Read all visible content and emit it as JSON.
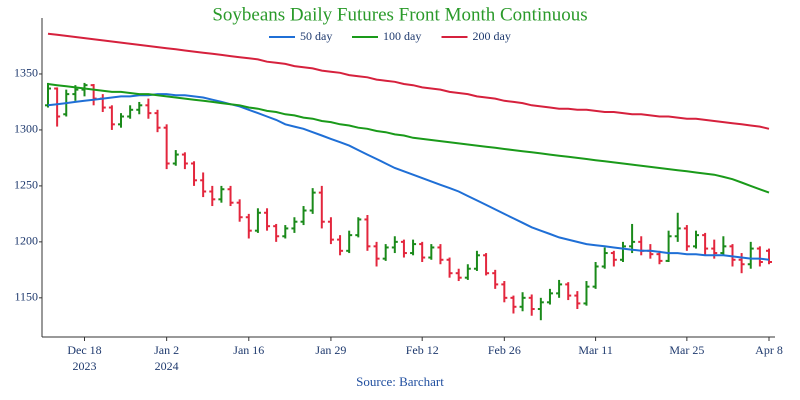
{
  "chart_data": {
    "type": "ohlc",
    "title": "Soybeans Daily Futures Front Month Continuous",
    "source": "Source: Barchart",
    "x": [
      "2023-12-12",
      "2023-12-13",
      "2023-12-14",
      "2023-12-15",
      "2023-12-18",
      "2023-12-19",
      "2023-12-20",
      "2023-12-21",
      "2023-12-22",
      "2023-12-26",
      "2023-12-27",
      "2023-12-28",
      "2023-12-29",
      "2024-01-02",
      "2024-01-03",
      "2024-01-04",
      "2024-01-05",
      "2024-01-08",
      "2024-01-09",
      "2024-01-10",
      "2024-01-11",
      "2024-01-12",
      "2024-01-16",
      "2024-01-17",
      "2024-01-18",
      "2024-01-19",
      "2024-01-22",
      "2024-01-23",
      "2024-01-24",
      "2024-01-25",
      "2024-01-26",
      "2024-01-29",
      "2024-01-30",
      "2024-01-31",
      "2024-02-01",
      "2024-02-02",
      "2024-02-05",
      "2024-02-06",
      "2024-02-07",
      "2024-02-08",
      "2024-02-09",
      "2024-02-12",
      "2024-02-13",
      "2024-02-14",
      "2024-02-15",
      "2024-02-16",
      "2024-02-20",
      "2024-02-21",
      "2024-02-22",
      "2024-02-23",
      "2024-02-26",
      "2024-02-27",
      "2024-02-28",
      "2024-02-29",
      "2024-03-01",
      "2024-03-04",
      "2024-03-05",
      "2024-03-06",
      "2024-03-07",
      "2024-03-08",
      "2024-03-11",
      "2024-03-12",
      "2024-03-13",
      "2024-03-14",
      "2024-03-15",
      "2024-03-18",
      "2024-03-19",
      "2024-03-20",
      "2024-03-21",
      "2024-03-22",
      "2024-03-25",
      "2024-03-26",
      "2024-03-27",
      "2024-03-28",
      "2024-04-01",
      "2024-04-02",
      "2024-04-03",
      "2024-04-04",
      "2024-04-05",
      "2024-04-08"
    ],
    "open": [
      1322,
      1337,
      1314,
      1332,
      1336,
      1340,
      1328,
      1320,
      1305,
      1312,
      1318,
      1322,
      1315,
      1302,
      1270,
      1278,
      1270,
      1255,
      1245,
      1238,
      1247,
      1235,
      1222,
      1210,
      1226,
      1214,
      1205,
      1212,
      1218,
      1228,
      1244,
      1218,
      1202,
      1192,
      1206,
      1220,
      1196,
      1185,
      1195,
      1200,
      1190,
      1198,
      1186,
      1195,
      1184,
      1172,
      1168,
      1176,
      1188,
      1172,
      1162,
      1150,
      1142,
      1150,
      1140,
      1146,
      1154,
      1162,
      1152,
      1145,
      1160,
      1178,
      1190,
      1184,
      1196,
      1200,
      1192,
      1189,
      1183,
      1205,
      1212,
      1196,
      1206,
      1194,
      1190,
      1196,
      1184,
      1180,
      1194,
      1192
    ],
    "high": [
      1342,
      1338,
      1336,
      1340,
      1342,
      1341,
      1332,
      1322,
      1315,
      1322,
      1325,
      1328,
      1318,
      1305,
      1282,
      1280,
      1272,
      1262,
      1250,
      1250,
      1250,
      1238,
      1225,
      1230,
      1230,
      1216,
      1215,
      1222,
      1232,
      1248,
      1250,
      1222,
      1206,
      1210,
      1222,
      1224,
      1200,
      1198,
      1205,
      1202,
      1202,
      1200,
      1198,
      1198,
      1186,
      1176,
      1180,
      1192,
      1190,
      1175,
      1165,
      1152,
      1155,
      1153,
      1150,
      1158,
      1166,
      1164,
      1156,
      1165,
      1182,
      1195,
      1192,
      1200,
      1216,
      1205,
      1198,
      1192,
      1210,
      1226,
      1215,
      1210,
      1208,
      1202,
      1205,
      1198,
      1190,
      1200,
      1196,
      1194
    ],
    "low": [
      1320,
      1303,
      1312,
      1326,
      1330,
      1322,
      1316,
      1300,
      1302,
      1310,
      1314,
      1310,
      1298,
      1265,
      1268,
      1265,
      1250,
      1240,
      1232,
      1235,
      1232,
      1218,
      1203,
      1208,
      1210,
      1200,
      1203,
      1208,
      1215,
      1225,
      1212,
      1198,
      1188,
      1190,
      1204,
      1192,
      1178,
      1183,
      1190,
      1186,
      1188,
      1182,
      1184,
      1180,
      1168,
      1165,
      1166,
      1174,
      1170,
      1158,
      1146,
      1136,
      1138,
      1134,
      1130,
      1144,
      1150,
      1148,
      1140,
      1143,
      1158,
      1176,
      1178,
      1182,
      1190,
      1188,
      1185,
      1180,
      1182,
      1200,
      1192,
      1194,
      1188,
      1185,
      1188,
      1178,
      1172,
      1176,
      1178,
      1180
    ],
    "close": [
      1337,
      1312,
      1332,
      1336,
      1340,
      1328,
      1320,
      1305,
      1312,
      1318,
      1322,
      1315,
      1302,
      1270,
      1278,
      1270,
      1255,
      1245,
      1238,
      1247,
      1235,
      1222,
      1210,
      1226,
      1214,
      1205,
      1212,
      1218,
      1228,
      1244,
      1218,
      1202,
      1192,
      1206,
      1220,
      1196,
      1185,
      1195,
      1200,
      1190,
      1198,
      1186,
      1195,
      1184,
      1172,
      1168,
      1176,
      1188,
      1172,
      1162,
      1150,
      1142,
      1150,
      1140,
      1146,
      1154,
      1162,
      1152,
      1145,
      1160,
      1178,
      1190,
      1184,
      1196,
      1200,
      1192,
      1189,
      1183,
      1205,
      1212,
      1196,
      1206,
      1194,
      1190,
      1196,
      1184,
      1180,
      1194,
      1182,
      1182
    ],
    "up_color": "#1a8a1a",
    "down_color": "#e3263d",
    "series": [
      {
        "name": "50 day",
        "color": "#1f6fd6",
        "values": [
          1322,
          1323,
          1324,
          1325,
          1326,
          1327,
          1328,
          1329,
          1330,
          1330,
          1331,
          1331,
          1332,
          1332,
          1331,
          1331,
          1330,
          1329,
          1327,
          1325,
          1323,
          1321,
          1318,
          1315,
          1312,
          1309,
          1305,
          1303,
          1301,
          1298,
          1295,
          1292,
          1289,
          1286,
          1282,
          1278,
          1274,
          1270,
          1266,
          1263,
          1260,
          1257,
          1254,
          1251,
          1248,
          1245,
          1241,
          1237,
          1233,
          1229,
          1225,
          1221,
          1217,
          1213,
          1210,
          1207,
          1204,
          1202,
          1200,
          1198,
          1197,
          1196,
          1195,
          1194,
          1193,
          1192,
          1192,
          1191,
          1190,
          1190,
          1189,
          1189,
          1188,
          1188,
          1188,
          1187,
          1186,
          1185,
          1185,
          1184
        ]
      },
      {
        "name": "100 day",
        "color": "#1a9a1a",
        "values": [
          1341,
          1340,
          1339,
          1338,
          1337,
          1336,
          1335,
          1334,
          1334,
          1333,
          1332,
          1332,
          1331,
          1330,
          1329,
          1328,
          1327,
          1326,
          1325,
          1324,
          1323,
          1322,
          1320,
          1319,
          1317,
          1316,
          1314,
          1313,
          1311,
          1310,
          1308,
          1307,
          1305,
          1304,
          1302,
          1301,
          1299,
          1298,
          1296,
          1295,
          1293,
          1292,
          1291,
          1290,
          1289,
          1288,
          1287,
          1286,
          1285,
          1284,
          1283,
          1282,
          1281,
          1280,
          1279,
          1278,
          1277,
          1276,
          1275,
          1274,
          1273,
          1272,
          1271,
          1270,
          1269,
          1268,
          1267,
          1266,
          1265,
          1264,
          1263,
          1262,
          1261,
          1260,
          1258,
          1256,
          1253,
          1250,
          1247,
          1244
        ]
      },
      {
        "name": "200 day",
        "color": "#d6213d",
        "values": [
          1386,
          1385,
          1384,
          1383,
          1382,
          1381,
          1380,
          1379,
          1378,
          1377,
          1376,
          1375,
          1374,
          1373,
          1372,
          1371,
          1370,
          1369,
          1368,
          1367,
          1366,
          1365,
          1364,
          1363,
          1361,
          1360,
          1359,
          1357,
          1356,
          1355,
          1353,
          1352,
          1351,
          1349,
          1348,
          1347,
          1345,
          1344,
          1343,
          1341,
          1340,
          1338,
          1337,
          1336,
          1334,
          1333,
          1332,
          1330,
          1329,
          1328,
          1326,
          1325,
          1324,
          1322,
          1321,
          1320,
          1319,
          1319,
          1318,
          1318,
          1317,
          1316,
          1316,
          1315,
          1314,
          1314,
          1313,
          1312,
          1312,
          1311,
          1310,
          1310,
          1309,
          1308,
          1307,
          1306,
          1305,
          1304,
          1303,
          1301
        ]
      }
    ],
    "ylim": [
      1115,
      1400
    ],
    "yticks": [
      1150,
      1200,
      1250,
      1300,
      1350
    ],
    "xticks": [
      {
        "value": "2023-12-18",
        "label": "Dec 18",
        "year": "2023"
      },
      {
        "value": "2024-01-02",
        "label": "Jan 2",
        "year": "2024"
      },
      {
        "value": "2024-01-16",
        "label": "Jan 16"
      },
      {
        "value": "2024-01-29",
        "label": "Jan 29"
      },
      {
        "value": "2024-02-12",
        "label": "Feb 12"
      },
      {
        "value": "2024-02-26",
        "label": "Feb 26"
      },
      {
        "value": "2024-03-11",
        "label": "Mar 11"
      },
      {
        "value": "2024-03-25",
        "label": "Mar 25"
      },
      {
        "value": "2024-04-08",
        "label": "Apr 8"
      }
    ],
    "legend": "top"
  }
}
